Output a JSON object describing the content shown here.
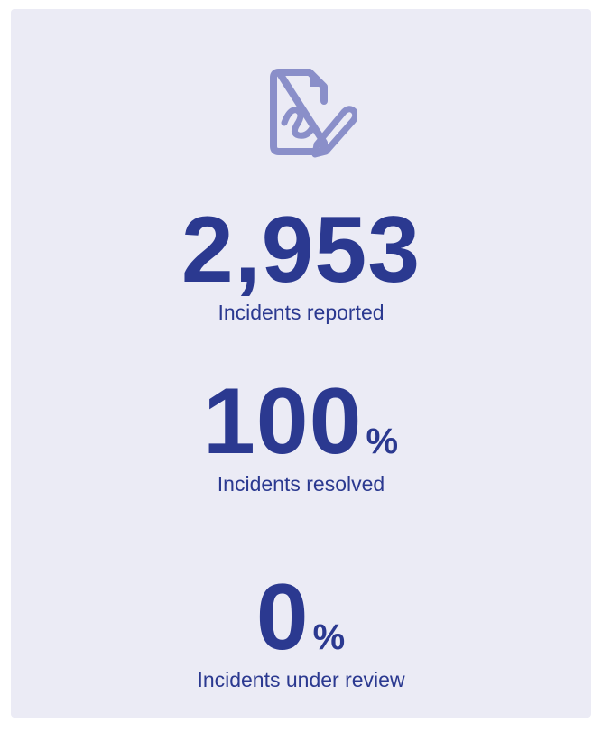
{
  "stats": [
    {
      "value": "2,953",
      "label": "Incidents reported"
    },
    {
      "value": "100",
      "unit": "%",
      "label": "Incidents resolved"
    },
    {
      "value": "0",
      "unit": "%",
      "label": "Incidents under review"
    }
  ]
}
